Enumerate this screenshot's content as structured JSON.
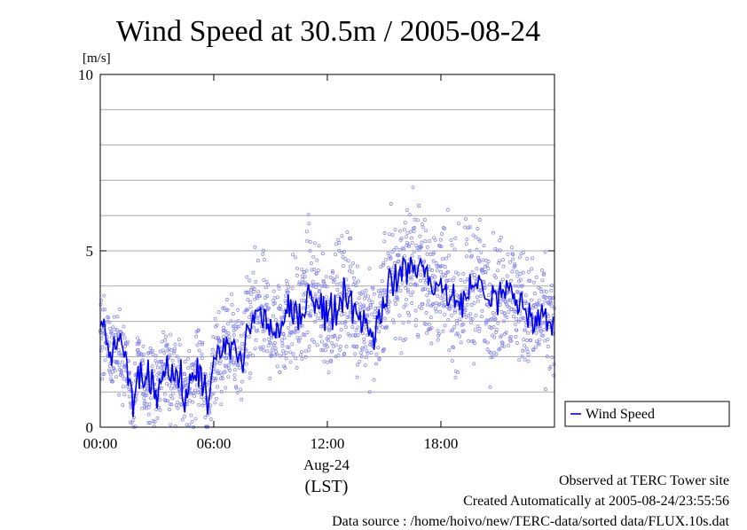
{
  "chart_data": {
    "type": "scatter",
    "title": "Wind Speed at 30.5m / 2005-08-24",
    "ylabel": "[m/s]",
    "xlabel": "(LST)",
    "x_date_label": "Aug-24",
    "ylim": [
      0,
      10
    ],
    "xlim": [
      "00:00",
      "24:00"
    ],
    "yticks": [
      "0",
      "5",
      "10"
    ],
    "xticks": [
      "00:00",
      "06:00",
      "12:00",
      "18:00"
    ],
    "grid": true,
    "legend_position": "right",
    "colors": {
      "line": "#0000ee",
      "points": "#8080f0",
      "grid": "#aaaaaa"
    },
    "series": [
      {
        "name": "Wind Speed",
        "x": [
          "00:00",
          "00:30",
          "01:00",
          "01:30",
          "01:45",
          "02:00",
          "02:20",
          "02:45",
          "03:00",
          "03:20",
          "03:45",
          "04:00",
          "04:30",
          "05:00",
          "05:15",
          "05:30",
          "05:45",
          "06:00",
          "06:30",
          "07:00",
          "07:30",
          "07:45",
          "08:00",
          "08:30",
          "09:00",
          "09:30",
          "10:00",
          "10:30",
          "11:00",
          "11:30",
          "12:00",
          "12:30",
          "13:00",
          "13:30",
          "14:00",
          "14:30",
          "15:00",
          "15:30",
          "16:00",
          "16:30",
          "17:00",
          "17:30",
          "18:00",
          "18:30",
          "19:00",
          "19:30",
          "20:00",
          "20:30",
          "21:00",
          "21:30",
          "22:00",
          "22:30",
          "23:00",
          "23:30",
          "23:59"
        ],
        "y": [
          2.9,
          2.1,
          2.4,
          1.5,
          0.3,
          1.8,
          1.2,
          1.5,
          0.8,
          1.9,
          1.4,
          1.6,
          0.8,
          1.5,
          1.8,
          1.1,
          0.4,
          1.9,
          2.2,
          2.3,
          1.8,
          2.6,
          3.1,
          3.2,
          2.8,
          2.7,
          3.3,
          3.0,
          3.9,
          3.6,
          3.1,
          3.4,
          3.9,
          3.3,
          3.0,
          2.6,
          3.7,
          4.2,
          4.4,
          4.6,
          4.5,
          4.1,
          4.0,
          3.6,
          3.5,
          3.9,
          4.1,
          3.7,
          3.6,
          3.9,
          3.6,
          3.3,
          3.0,
          3.1,
          2.8
        ],
        "scatter_spread": 1.1
      }
    ]
  },
  "footer": {
    "line1": "Observed at TERC Tower site",
    "line2": "Created Automatically at 2005-08-24/23:55:56",
    "line3": "Data source : /home/hoivo/new/TERC-data/sorted  data/FLUX.10s.dat"
  }
}
